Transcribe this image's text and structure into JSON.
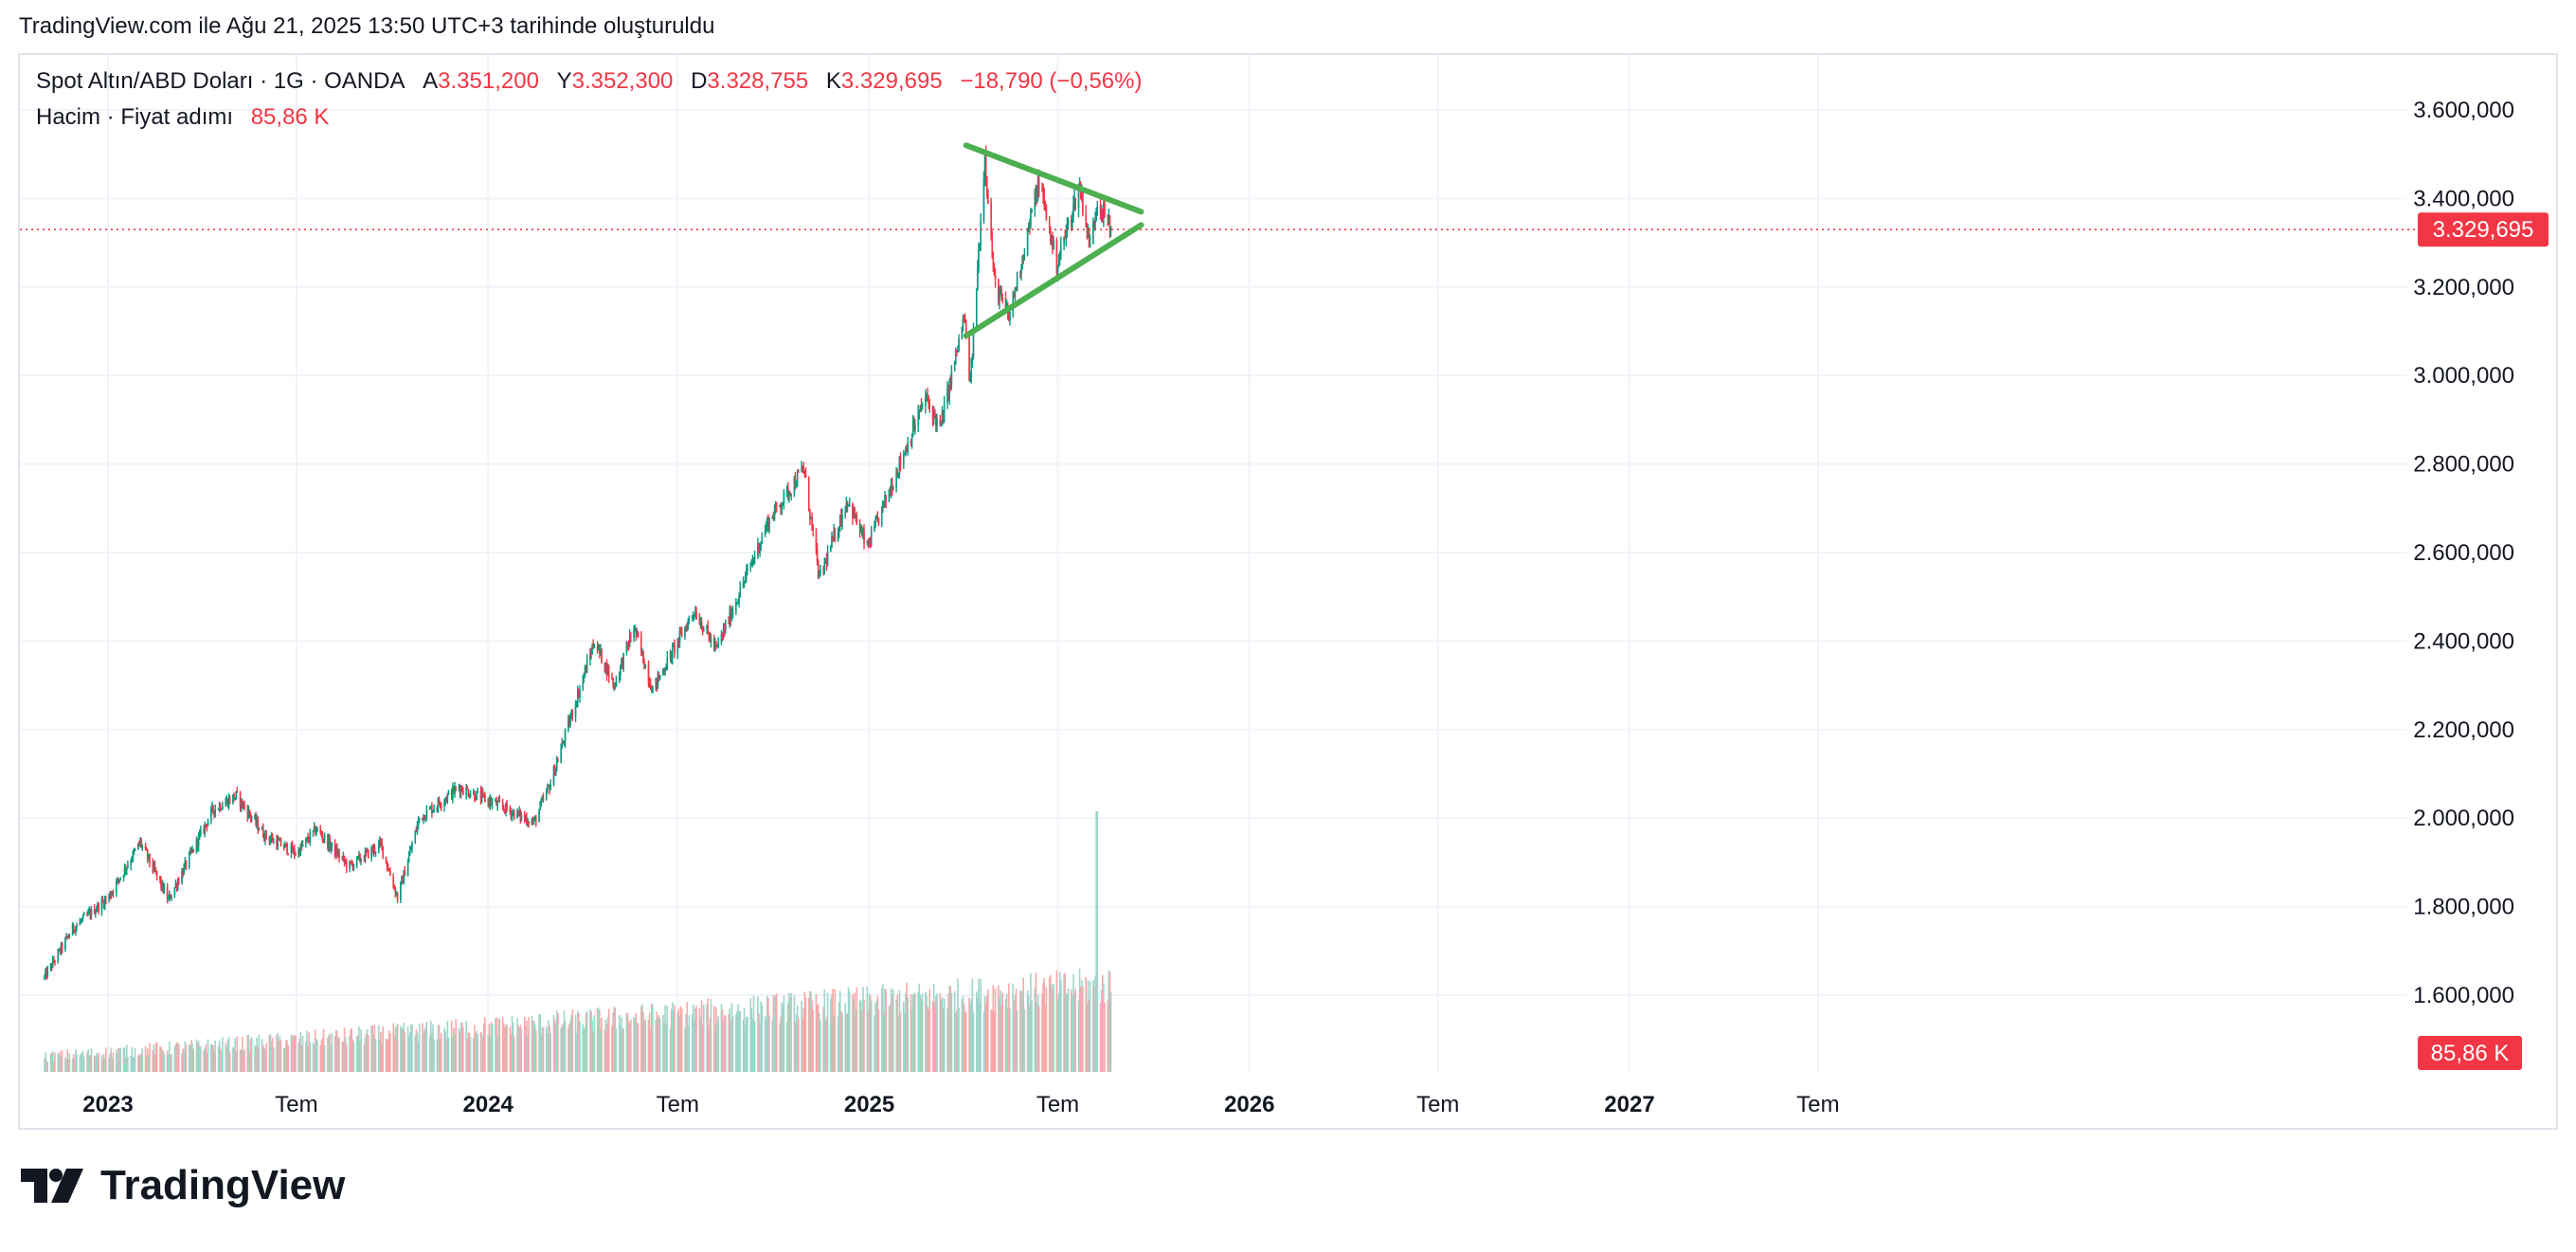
{
  "caption": "TradingView.com ile Ağu 21, 2025 13:50 UTC+3 tarihinde oluşturuldu",
  "legend": {
    "symbol": "Spot Altın/ABD Doları · 1G · OANDA",
    "open_label": "A",
    "open": "3.351,200",
    "high_label": "Y",
    "high": "3.352,300",
    "low_label": "D",
    "low": "3.328,755",
    "close_label": "K",
    "close": "3.329,695",
    "change": "−18,790 (−0,56%)",
    "volume_label": "Hacim · Fiyat adımı",
    "volume_value": "85,86 K"
  },
  "brand": {
    "name": "TradingView",
    "logo_icon": "tradingview-logo-icon"
  },
  "colors": {
    "up": "#089981",
    "down": "#f23645",
    "volume_up": "#9fd5ca",
    "volume_down": "#f7a9a9",
    "pattern": "#4caf50",
    "grid": "#f0f3fa",
    "price_badge": "#f23645"
  },
  "chart_data": {
    "type": "candlestick",
    "series_label": "Spot Altın/ABD Doları",
    "interval": "1G",
    "exchange": "OANDA",
    "x_range": [
      "2022-11-01",
      "2027-12-31"
    ],
    "y_range": [
      1500,
      3650
    ],
    "y_axis_ticks": [
      "3.600,000",
      "3.400,000",
      "3.200,000",
      "3.000,000",
      "2.800,000",
      "2.600,000",
      "2.400,000",
      "2.200,000",
      "2.000,000",
      "1.800,000",
      "1.600,000"
    ],
    "y_axis_tick_values": [
      3600,
      3400,
      3200,
      3000,
      2800,
      2600,
      2400,
      2200,
      2000,
      1800,
      1600
    ],
    "x_axis_ticks": [
      {
        "date": "2023-01-01",
        "label": "2023",
        "bold": true
      },
      {
        "date": "2023-07-01",
        "label": "Tem",
        "bold": false
      },
      {
        "date": "2024-01-01",
        "label": "2024",
        "bold": true
      },
      {
        "date": "2024-07-01",
        "label": "Tem",
        "bold": false
      },
      {
        "date": "2025-01-01",
        "label": "2025",
        "bold": true
      },
      {
        "date": "2025-07-01",
        "label": "Tem",
        "bold": false
      },
      {
        "date": "2026-01-01",
        "label": "2026",
        "bold": true
      },
      {
        "date": "2026-07-01",
        "label": "Tem",
        "bold": false
      },
      {
        "date": "2027-01-01",
        "label": "2027",
        "bold": true
      },
      {
        "date": "2027-07-01",
        "label": "Tem",
        "bold": false
      }
    ],
    "price_path": [
      {
        "date": "2022-11-01",
        "price": 1640
      },
      {
        "date": "2022-11-28",
        "price": 1750
      },
      {
        "date": "2023-01-01",
        "price": 1820
      },
      {
        "date": "2023-02-01",
        "price": 1945
      },
      {
        "date": "2023-02-28",
        "price": 1815
      },
      {
        "date": "2023-04-12",
        "price": 2020
      },
      {
        "date": "2023-05-04",
        "price": 2050
      },
      {
        "date": "2023-06-01",
        "price": 1960
      },
      {
        "date": "2023-07-01",
        "price": 1920
      },
      {
        "date": "2023-07-20",
        "price": 1975
      },
      {
        "date": "2023-08-20",
        "price": 1890
      },
      {
        "date": "2023-09-20",
        "price": 1940
      },
      {
        "date": "2023-10-06",
        "price": 1820
      },
      {
        "date": "2023-10-27",
        "price": 2000
      },
      {
        "date": "2023-12-04",
        "price": 2070
      },
      {
        "date": "2024-01-10",
        "price": 2030
      },
      {
        "date": "2024-02-14",
        "price": 1990
      },
      {
        "date": "2024-03-01",
        "price": 2080
      },
      {
        "date": "2024-04-12",
        "price": 2400
      },
      {
        "date": "2024-05-01",
        "price": 2300
      },
      {
        "date": "2024-05-20",
        "price": 2430
      },
      {
        "date": "2024-06-07",
        "price": 2290
      },
      {
        "date": "2024-07-17",
        "price": 2470
      },
      {
        "date": "2024-08-07",
        "price": 2380
      },
      {
        "date": "2024-09-26",
        "price": 2670
      },
      {
        "date": "2024-10-30",
        "price": 2790
      },
      {
        "date": "2024-11-14",
        "price": 2540
      },
      {
        "date": "2024-12-11",
        "price": 2720
      },
      {
        "date": "2024-12-30",
        "price": 2610
      },
      {
        "date": "2025-01-30",
        "price": 2800
      },
      {
        "date": "2025-02-24",
        "price": 2950
      },
      {
        "date": "2025-03-10",
        "price": 2880
      },
      {
        "date": "2025-04-02",
        "price": 3130
      },
      {
        "date": "2025-04-08",
        "price": 2980
      },
      {
        "date": "2025-04-22",
        "price": 3500
      },
      {
        "date": "2025-05-01",
        "price": 3210
      },
      {
        "date": "2025-05-15",
        "price": 3130
      },
      {
        "date": "2025-06-13",
        "price": 3440
      },
      {
        "date": "2025-06-30",
        "price": 3250
      },
      {
        "date": "2025-07-22",
        "price": 3430
      },
      {
        "date": "2025-08-01",
        "price": 3290
      },
      {
        "date": "2025-08-08",
        "price": 3400
      },
      {
        "date": "2025-08-21",
        "price": 3330
      }
    ],
    "last_price": 3329.695,
    "last_price_label": "3.329,695",
    "volume_last_label": "85,86 K",
    "volume_spike_date": "2025-08-08",
    "patterns": [
      {
        "type": "symmetrical-triangle",
        "color": "#4caf50",
        "upper_line": [
          {
            "date": "2025-04-04",
            "price": 3520
          },
          {
            "date": "2025-09-19",
            "price": 3370
          }
        ],
        "lower_line": [
          {
            "date": "2025-04-04",
            "price": 3090
          },
          {
            "date": "2025-09-19",
            "price": 3340
          }
        ]
      }
    ]
  }
}
